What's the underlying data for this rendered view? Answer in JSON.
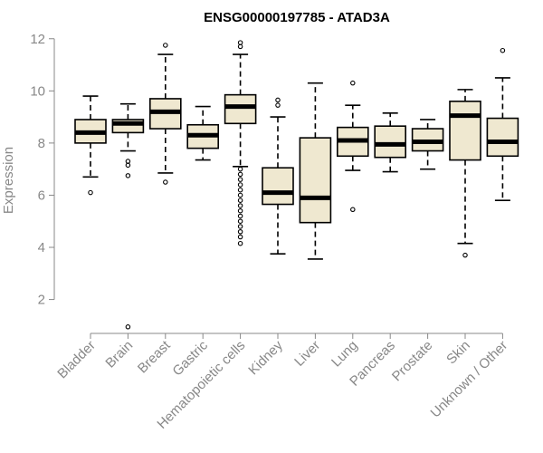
{
  "chart_data": {
    "type": "box",
    "title": "ENSG00000197785 - ATAD3A",
    "xlabel": "",
    "ylabel": "Expression",
    "ylim": [
      0.7,
      12.2
    ],
    "yticks": [
      2,
      4,
      6,
      8,
      10,
      12
    ],
    "box_fill": "#efe8d0",
    "categories": [
      "Bladder",
      "Brain",
      "Breast",
      "Gastric",
      "Hematopoietic cells",
      "Kidney",
      "Liver",
      "Lung",
      "Pancreas",
      "Prostate",
      "Skin",
      "Unknown / Other"
    ],
    "boxes": [
      {
        "min": 6.7,
        "q1": 8.0,
        "median": 8.4,
        "q3": 8.9,
        "max": 9.8,
        "outliers": [
          6.1
        ]
      },
      {
        "min": 7.7,
        "q1": 8.4,
        "median": 8.75,
        "q3": 8.9,
        "max": 9.5,
        "outliers": [
          7.3,
          7.15,
          6.75,
          0.95
        ]
      },
      {
        "min": 6.85,
        "q1": 8.55,
        "median": 9.2,
        "q3": 9.7,
        "max": 11.4,
        "outliers": [
          11.75,
          6.5
        ]
      },
      {
        "min": 7.35,
        "q1": 7.8,
        "median": 8.3,
        "q3": 8.7,
        "max": 9.4,
        "outliers": []
      },
      {
        "min": 7.1,
        "q1": 8.75,
        "median": 9.4,
        "q3": 9.85,
        "max": 11.4,
        "outliers": [
          11.85,
          11.7,
          7.0,
          6.8,
          6.6,
          6.4,
          6.2,
          6.0,
          5.8,
          5.6,
          5.4,
          5.2,
          5.0,
          4.8,
          4.6,
          4.4,
          4.15
        ]
      },
      {
        "min": 3.75,
        "q1": 5.65,
        "median": 6.1,
        "q3": 7.05,
        "max": 9.0,
        "outliers": [
          9.65,
          9.45
        ]
      },
      {
        "min": 3.55,
        "q1": 4.95,
        "median": 5.9,
        "q3": 8.2,
        "max": 10.3,
        "outliers": []
      },
      {
        "min": 6.95,
        "q1": 7.5,
        "median": 8.1,
        "q3": 8.6,
        "max": 9.45,
        "outliers": [
          10.3,
          5.45
        ]
      },
      {
        "min": 6.9,
        "q1": 7.45,
        "median": 7.95,
        "q3": 8.65,
        "max": 9.15,
        "outliers": []
      },
      {
        "min": 7.0,
        "q1": 7.7,
        "median": 8.05,
        "q3": 8.55,
        "max": 8.9,
        "outliers": []
      },
      {
        "min": 4.15,
        "q1": 7.35,
        "median": 9.05,
        "q3": 9.6,
        "max": 10.05,
        "outliers": [
          3.7
        ]
      },
      {
        "min": 5.8,
        "q1": 7.5,
        "median": 8.05,
        "q3": 8.95,
        "max": 10.5,
        "outliers": [
          11.55
        ]
      }
    ]
  }
}
